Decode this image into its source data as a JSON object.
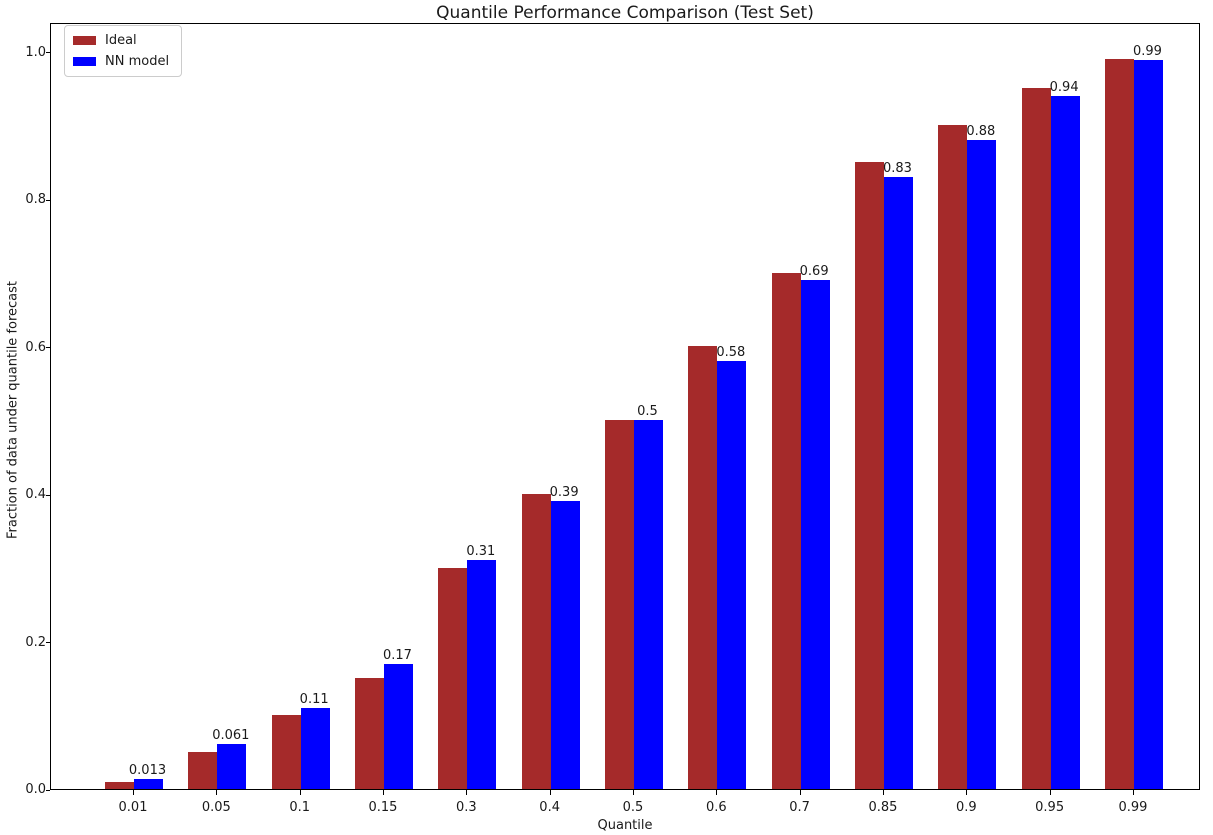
{
  "chart_data": {
    "type": "bar",
    "title": "Quantile Performance Comparison (Test Set)",
    "xlabel": "Quantile",
    "ylabel": "Fraction of data under quantile forecast",
    "categories": [
      "0.01",
      "0.05",
      "0.1",
      "0.15",
      "0.3",
      "0.4",
      "0.5",
      "0.6",
      "0.7",
      "0.85",
      "0.9",
      "0.95",
      "0.99"
    ],
    "series": [
      {
        "name": "Ideal",
        "color": "#A52A2A",
        "values": [
          0.01,
          0.05,
          0.1,
          0.15,
          0.3,
          0.4,
          0.5,
          0.6,
          0.7,
          0.85,
          0.9,
          0.95,
          0.99
        ]
      },
      {
        "name": "NN model",
        "color": "#0000FF",
        "values": [
          0.013,
          0.061,
          0.11,
          0.17,
          0.31,
          0.39,
          0.5,
          0.58,
          0.69,
          0.83,
          0.88,
          0.94,
          0.988
        ],
        "bar_labels": [
          "0.013",
          "0.061",
          "0.11",
          "0.17",
          "0.31",
          "0.39",
          "0.5",
          "0.58",
          "0.69",
          "0.83",
          "0.88",
          "0.94",
          "0.99"
        ]
      }
    ],
    "yticks": [
      0.0,
      0.2,
      0.4,
      0.6,
      0.8,
      1.0
    ],
    "ytick_labels": [
      "0.0",
      "0.2",
      "0.4",
      "0.6",
      "0.8",
      "1.0"
    ],
    "ylim": [
      0,
      1.04
    ],
    "grid": false,
    "legend_position": "upper-left",
    "bar_label_series": "NN model"
  }
}
